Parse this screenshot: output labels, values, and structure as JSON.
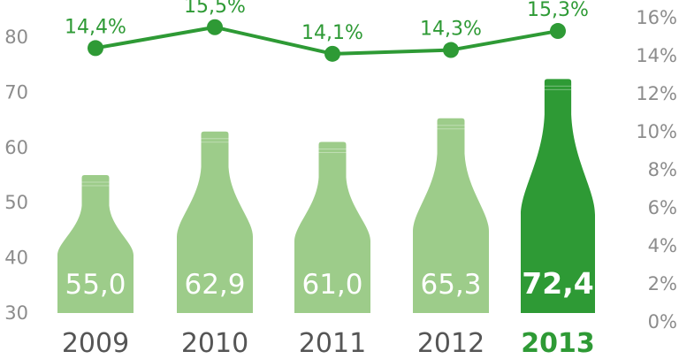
{
  "chart_data": {
    "type": "bar",
    "categories": [
      "2009",
      "2010",
      "2011",
      "2012",
      "2013"
    ],
    "highlight_index": 4,
    "series": [
      {
        "axis": "left",
        "values": [
          55.0,
          62.9,
          61.0,
          65.3,
          72.4
        ],
        "labels": [
          "55,0",
          "62,9",
          "61,0",
          "65,3",
          "72,4"
        ],
        "color": "#9dcc8a",
        "highlight_color": "#2e9a35"
      },
      {
        "type": "line",
        "axis": "right",
        "values": [
          14.4,
          15.5,
          14.1,
          14.3,
          15.3
        ],
        "labels": [
          "14,4%",
          "15,5%",
          "14,1%",
          "14,3%",
          "15,3%"
        ],
        "color": "#2e9a35"
      }
    ],
    "y_left": {
      "ylim": [
        30,
        80
      ],
      "ticks": [
        "30",
        "40",
        "50",
        "60",
        "70",
        "80"
      ]
    },
    "y_right": {
      "ylim": [
        0,
        16
      ],
      "ticks": [
        "0%",
        "2%",
        "4%",
        "6%",
        "8%",
        "10%",
        "12%",
        "14%",
        "16%"
      ]
    },
    "grid": false,
    "legend": "none",
    "bar_shape": "bottle"
  }
}
